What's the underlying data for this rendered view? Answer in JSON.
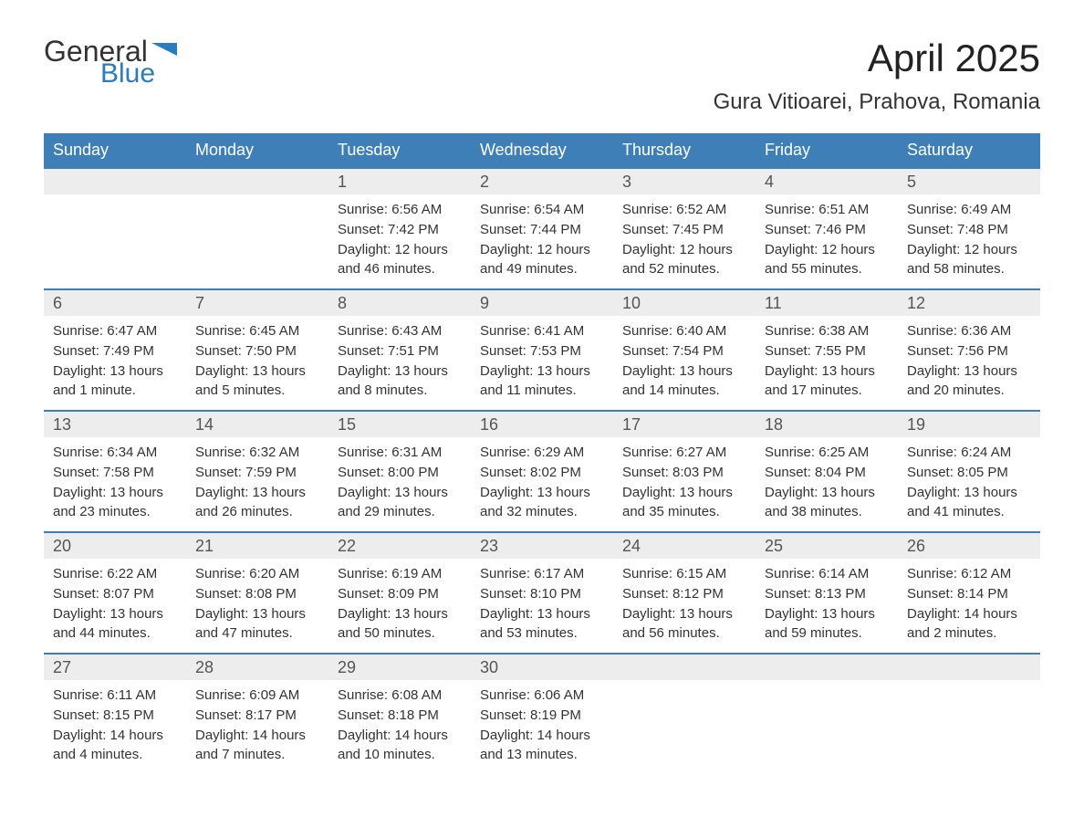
{
  "logo": {
    "text1": "General",
    "text2": "Blue",
    "color_general": "#333333",
    "color_blue": "#2b7bbf",
    "flag_color": "#2b7bbf"
  },
  "title": "April 2025",
  "location": "Gura Vitioarei, Prahova, Romania",
  "colors": {
    "header_bg": "#3e7fb8",
    "header_text": "#ffffff",
    "daynum_bg": "#ededed",
    "week_border": "#3e7fb8",
    "body_text": "#333333"
  },
  "weekdays": [
    "Sunday",
    "Monday",
    "Tuesday",
    "Wednesday",
    "Thursday",
    "Friday",
    "Saturday"
  ],
  "weeks": [
    [
      {
        "day": null
      },
      {
        "day": null
      },
      {
        "day": 1,
        "sunrise": "6:56 AM",
        "sunset": "7:42 PM",
        "daylight": "12 hours and 46 minutes."
      },
      {
        "day": 2,
        "sunrise": "6:54 AM",
        "sunset": "7:44 PM",
        "daylight": "12 hours and 49 minutes."
      },
      {
        "day": 3,
        "sunrise": "6:52 AM",
        "sunset": "7:45 PM",
        "daylight": "12 hours and 52 minutes."
      },
      {
        "day": 4,
        "sunrise": "6:51 AM",
        "sunset": "7:46 PM",
        "daylight": "12 hours and 55 minutes."
      },
      {
        "day": 5,
        "sunrise": "6:49 AM",
        "sunset": "7:48 PM",
        "daylight": "12 hours and 58 minutes."
      }
    ],
    [
      {
        "day": 6,
        "sunrise": "6:47 AM",
        "sunset": "7:49 PM",
        "daylight": "13 hours and 1 minute."
      },
      {
        "day": 7,
        "sunrise": "6:45 AM",
        "sunset": "7:50 PM",
        "daylight": "13 hours and 5 minutes."
      },
      {
        "day": 8,
        "sunrise": "6:43 AM",
        "sunset": "7:51 PM",
        "daylight": "13 hours and 8 minutes."
      },
      {
        "day": 9,
        "sunrise": "6:41 AM",
        "sunset": "7:53 PM",
        "daylight": "13 hours and 11 minutes."
      },
      {
        "day": 10,
        "sunrise": "6:40 AM",
        "sunset": "7:54 PM",
        "daylight": "13 hours and 14 minutes."
      },
      {
        "day": 11,
        "sunrise": "6:38 AM",
        "sunset": "7:55 PM",
        "daylight": "13 hours and 17 minutes."
      },
      {
        "day": 12,
        "sunrise": "6:36 AM",
        "sunset": "7:56 PM",
        "daylight": "13 hours and 20 minutes."
      }
    ],
    [
      {
        "day": 13,
        "sunrise": "6:34 AM",
        "sunset": "7:58 PM",
        "daylight": "13 hours and 23 minutes."
      },
      {
        "day": 14,
        "sunrise": "6:32 AM",
        "sunset": "7:59 PM",
        "daylight": "13 hours and 26 minutes."
      },
      {
        "day": 15,
        "sunrise": "6:31 AM",
        "sunset": "8:00 PM",
        "daylight": "13 hours and 29 minutes."
      },
      {
        "day": 16,
        "sunrise": "6:29 AM",
        "sunset": "8:02 PM",
        "daylight": "13 hours and 32 minutes."
      },
      {
        "day": 17,
        "sunrise": "6:27 AM",
        "sunset": "8:03 PM",
        "daylight": "13 hours and 35 minutes."
      },
      {
        "day": 18,
        "sunrise": "6:25 AM",
        "sunset": "8:04 PM",
        "daylight": "13 hours and 38 minutes."
      },
      {
        "day": 19,
        "sunrise": "6:24 AM",
        "sunset": "8:05 PM",
        "daylight": "13 hours and 41 minutes."
      }
    ],
    [
      {
        "day": 20,
        "sunrise": "6:22 AM",
        "sunset": "8:07 PM",
        "daylight": "13 hours and 44 minutes."
      },
      {
        "day": 21,
        "sunrise": "6:20 AM",
        "sunset": "8:08 PM",
        "daylight": "13 hours and 47 minutes."
      },
      {
        "day": 22,
        "sunrise": "6:19 AM",
        "sunset": "8:09 PM",
        "daylight": "13 hours and 50 minutes."
      },
      {
        "day": 23,
        "sunrise": "6:17 AM",
        "sunset": "8:10 PM",
        "daylight": "13 hours and 53 minutes."
      },
      {
        "day": 24,
        "sunrise": "6:15 AM",
        "sunset": "8:12 PM",
        "daylight": "13 hours and 56 minutes."
      },
      {
        "day": 25,
        "sunrise": "6:14 AM",
        "sunset": "8:13 PM",
        "daylight": "13 hours and 59 minutes."
      },
      {
        "day": 26,
        "sunrise": "6:12 AM",
        "sunset": "8:14 PM",
        "daylight": "14 hours and 2 minutes."
      }
    ],
    [
      {
        "day": 27,
        "sunrise": "6:11 AM",
        "sunset": "8:15 PM",
        "daylight": "14 hours and 4 minutes."
      },
      {
        "day": 28,
        "sunrise": "6:09 AM",
        "sunset": "8:17 PM",
        "daylight": "14 hours and 7 minutes."
      },
      {
        "day": 29,
        "sunrise": "6:08 AM",
        "sunset": "8:18 PM",
        "daylight": "14 hours and 10 minutes."
      },
      {
        "day": 30,
        "sunrise": "6:06 AM",
        "sunset": "8:19 PM",
        "daylight": "14 hours and 13 minutes."
      },
      {
        "day": null
      },
      {
        "day": null
      },
      {
        "day": null
      }
    ]
  ],
  "labels": {
    "sunrise": "Sunrise:",
    "sunset": "Sunset:",
    "daylight": "Daylight:"
  }
}
